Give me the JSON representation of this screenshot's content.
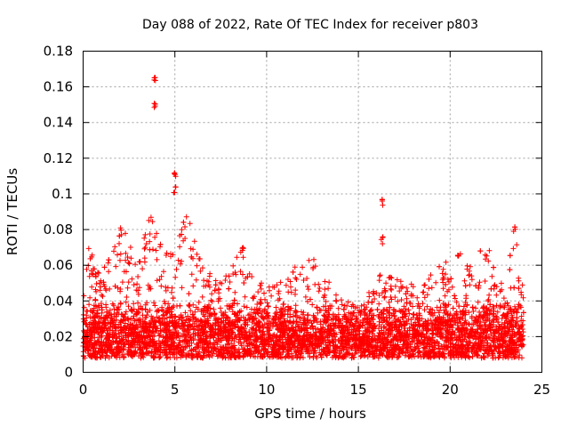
{
  "chart_data": {
    "type": "scatter",
    "title": "Day 088 of 2022, Rate Of TEC Index for receiver p803",
    "xlabel": "GPS time / hours",
    "ylabel": "ROTI / TECUs",
    "xlim": [
      0,
      25
    ],
    "ylim": [
      0,
      0.18
    ],
    "xticks": [
      0,
      5,
      10,
      15,
      20,
      25
    ],
    "yticks": [
      0,
      0.02,
      0.04,
      0.06,
      0.08,
      0.1,
      0.12,
      0.14,
      0.16,
      0.18
    ],
    "xtick_labels": [
      "0",
      "5",
      "10",
      "15",
      "20",
      "25"
    ],
    "ytick_labels": [
      "0",
      "0.02",
      "0.04",
      "0.06",
      "0.08",
      "0.1",
      "0.12",
      "0.14",
      "0.16",
      "0.18"
    ],
    "grid": true,
    "marker": "+",
    "color": "#ff0000",
    "series_summary": {
      "x_range": [
        0,
        24
      ],
      "typical_band": [
        0.008,
        0.04
      ],
      "notable_points": [
        {
          "x": 3.9,
          "y": 0.166
        },
        {
          "x": 3.9,
          "y": 0.152
        },
        {
          "x": 5.0,
          "y": 0.112
        },
        {
          "x": 5.0,
          "y": 0.104
        },
        {
          "x": 16.3,
          "y": 0.097
        },
        {
          "x": 16.3,
          "y": 0.076
        },
        {
          "x": 23.5,
          "y": 0.083
        },
        {
          "x": 8.7,
          "y": 0.07
        }
      ],
      "envelope": [
        {
          "x": 0.0,
          "y": 0.045
        },
        {
          "x": 0.3,
          "y": 0.07
        },
        {
          "x": 1.0,
          "y": 0.055
        },
        {
          "x": 2.1,
          "y": 0.083
        },
        {
          "x": 3.0,
          "y": 0.06
        },
        {
          "x": 3.6,
          "y": 0.09
        },
        {
          "x": 4.5,
          "y": 0.07
        },
        {
          "x": 5.7,
          "y": 0.09
        },
        {
          "x": 6.5,
          "y": 0.06
        },
        {
          "x": 7.5,
          "y": 0.05
        },
        {
          "x": 8.7,
          "y": 0.07
        },
        {
          "x": 9.5,
          "y": 0.05
        },
        {
          "x": 10.5,
          "y": 0.05
        },
        {
          "x": 11.5,
          "y": 0.06
        },
        {
          "x": 12.5,
          "y": 0.068
        },
        {
          "x": 13.5,
          "y": 0.05
        },
        {
          "x": 14.5,
          "y": 0.04
        },
        {
          "x": 15.0,
          "y": 0.035
        },
        {
          "x": 15.8,
          "y": 0.05
        },
        {
          "x": 16.3,
          "y": 0.06
        },
        {
          "x": 17.5,
          "y": 0.05
        },
        {
          "x": 18.5,
          "y": 0.05
        },
        {
          "x": 19.7,
          "y": 0.063
        },
        {
          "x": 20.8,
          "y": 0.068
        },
        {
          "x": 22.2,
          "y": 0.07
        },
        {
          "x": 23.0,
          "y": 0.05
        },
        {
          "x": 23.5,
          "y": 0.08
        },
        {
          "x": 24.0,
          "y": 0.047
        }
      ]
    }
  }
}
